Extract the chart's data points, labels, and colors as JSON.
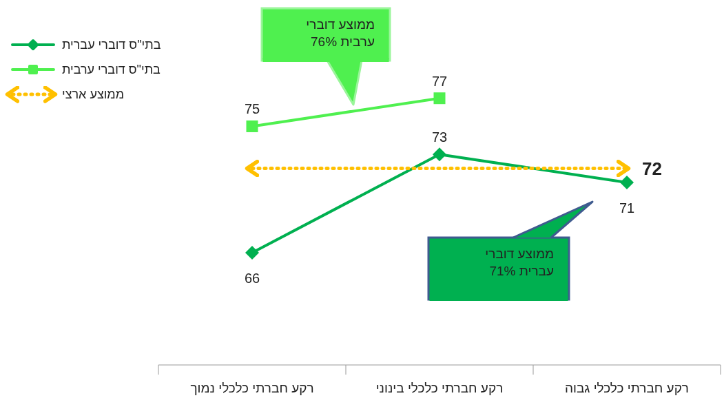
{
  "chart_data": {
    "type": "line",
    "categories": [
      "רקע חברתי כלכלי נמוך",
      "רקע חברתי כלכלי בינוני",
      "רקע חברתי כלכלי גבוה"
    ],
    "series": [
      {
        "name": "בתי\"ס דוברי עברית",
        "color": "#00b050",
        "values": [
          66,
          73,
          71
        ],
        "marker": "diamond",
        "value_labels": [
          "66",
          "73",
          "71"
        ]
      },
      {
        "name": "בתי\"ס דוברי ערבית",
        "color": "#4ff04f",
        "values": [
          75,
          77,
          null
        ],
        "marker": "square",
        "value_labels": [
          "75",
          "77",
          null
        ]
      },
      {
        "name": "ממוצע ארצי",
        "color": "#ffc000",
        "values": [
          72,
          72,
          72
        ],
        "marker": "none",
        "line_style": "dotted",
        "value_labels": [
          null,
          null,
          "72"
        ]
      }
    ],
    "ylim": [
      58,
      84
    ],
    "tick_labels": "x",
    "legend": "top left",
    "annotations": [
      "ממוצע דוברי ערבית 76%",
      "ממוצע דוברי עברית 71%"
    ]
  }
}
